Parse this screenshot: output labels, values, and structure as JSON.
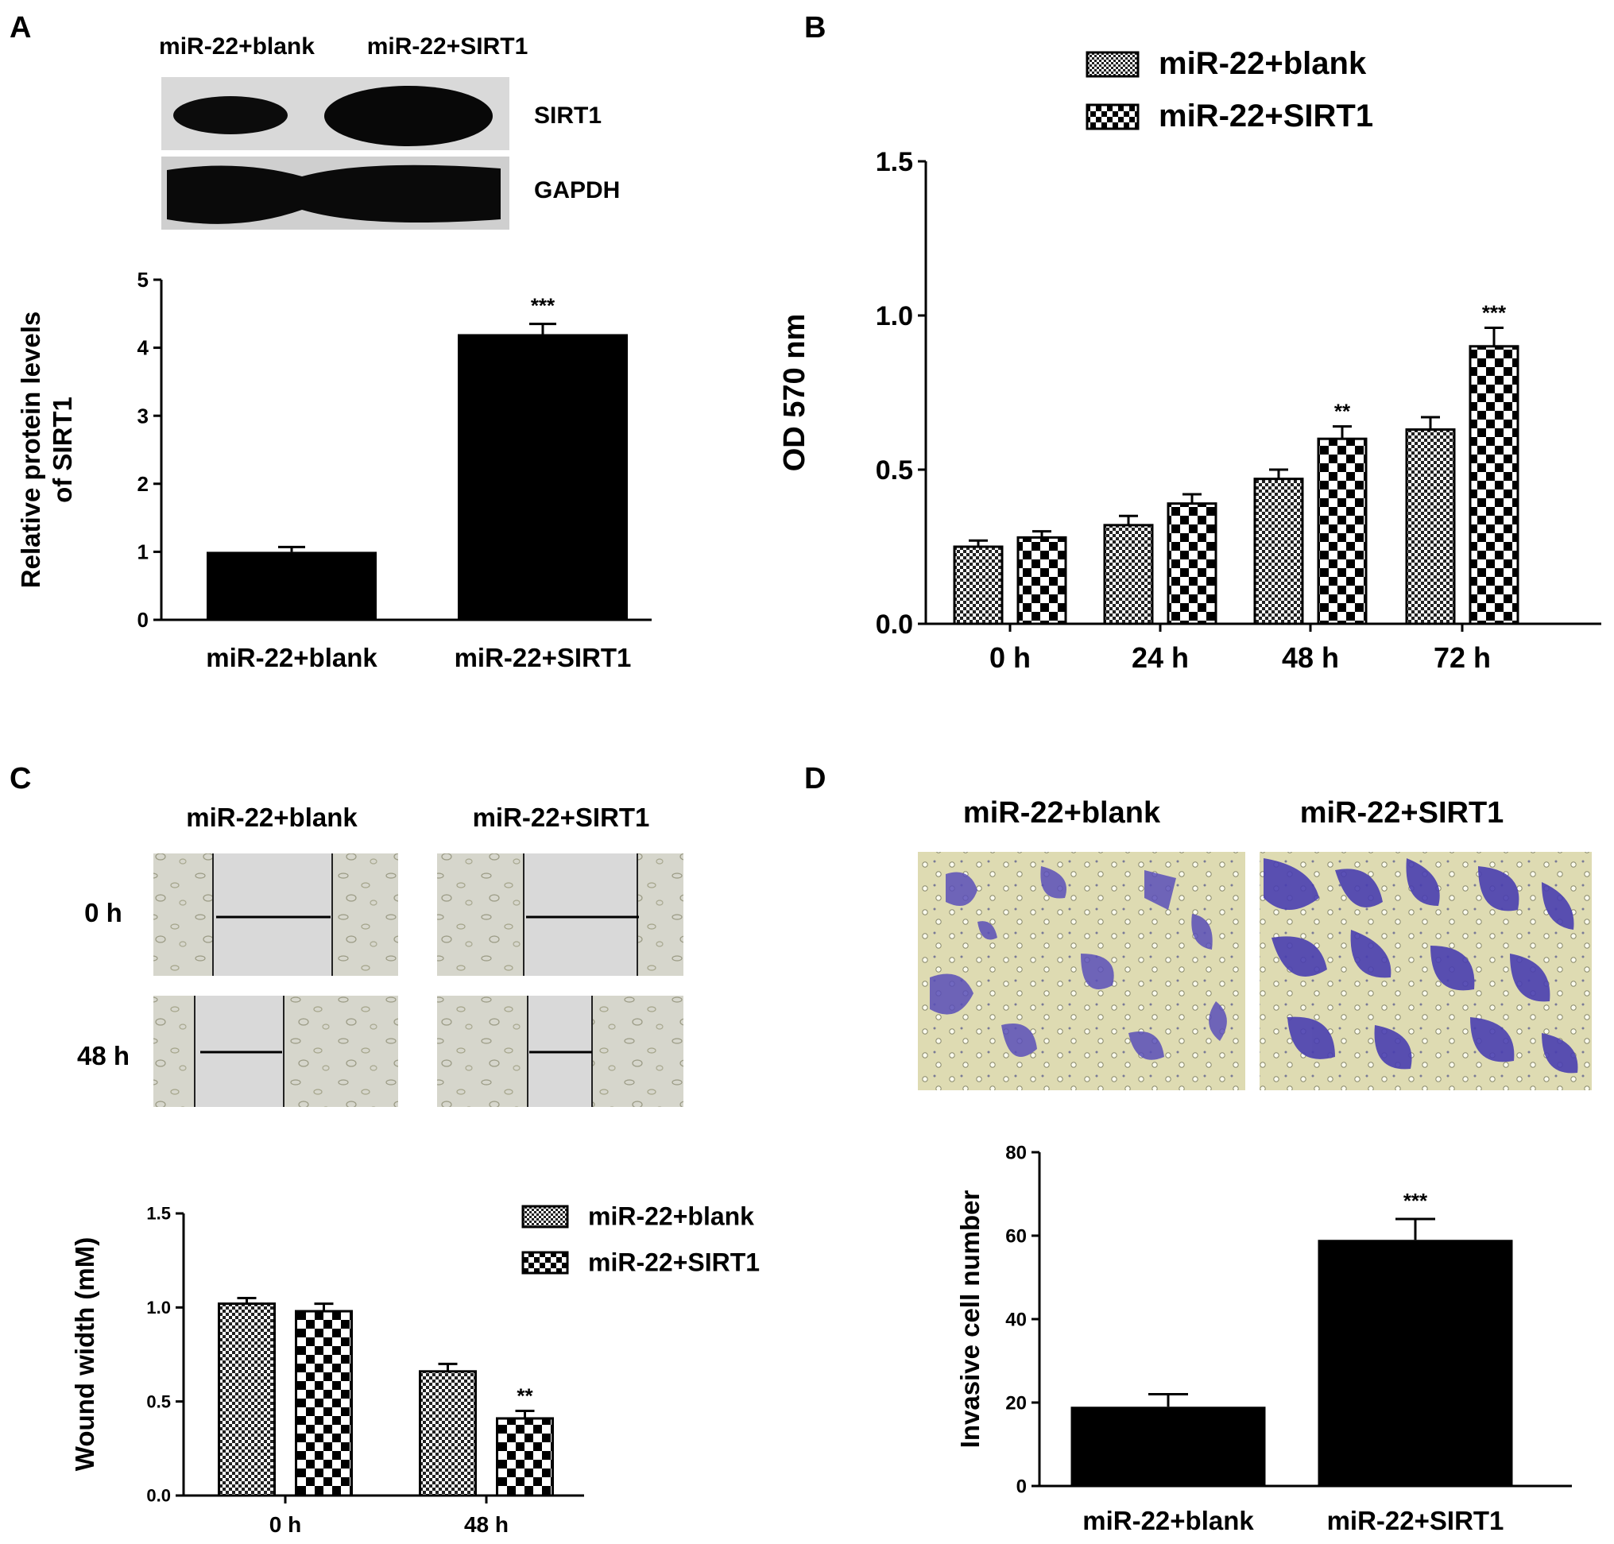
{
  "panels": {
    "A": {
      "letter": "A",
      "blot_top_labels": [
        "miR-22+blank",
        "miR-22+SIRT1"
      ],
      "blot_row_labels": [
        "SIRT1",
        "GAPDH"
      ]
    },
    "B": {
      "letter": "B"
    },
    "C": {
      "letter": "C",
      "image_col_labels": [
        "miR-22+blank",
        "miR-22+SIRT1"
      ],
      "image_row_labels": [
        "0 h",
        "48 h"
      ]
    },
    "D": {
      "letter": "D",
      "image_col_labels": [
        "miR-22+blank",
        "miR-22+SIRT1"
      ]
    }
  },
  "colors": {
    "bar_solid": "#000000",
    "pattern_fine": "#000000",
    "pattern_coarse": "#000000",
    "axis": "#000000"
  },
  "chart_data": [
    {
      "id": "A",
      "type": "bar",
      "categories": [
        "miR-22+blank",
        "miR-22+SIRT1"
      ],
      "values": [
        1.0,
        4.2
      ],
      "errors": [
        0.07,
        0.15
      ],
      "annotations": [
        "",
        "***"
      ],
      "xlabel": "",
      "ylabel": "Relative protein levels of SIRT1",
      "ylabel_lines": [
        "Relative protein levels",
        "of SIRT1"
      ],
      "ylim": [
        0,
        5
      ],
      "yticks": [
        0,
        1,
        2,
        3,
        4,
        5
      ],
      "ytick_labels": [
        "0",
        "1",
        "2",
        "3",
        "4",
        "5"
      ],
      "legend": "none",
      "grid": false
    },
    {
      "id": "B",
      "type": "bar",
      "categories": [
        "0 h",
        "24 h",
        "48 h",
        "72 h"
      ],
      "series": [
        {
          "name": "miR-22+blank",
          "pattern": "fine-checker",
          "values": [
            0.25,
            0.32,
            0.47,
            0.63
          ],
          "errors": [
            0.02,
            0.03,
            0.03,
            0.04
          ],
          "annotations": [
            "",
            "",
            "",
            ""
          ]
        },
        {
          "name": "miR-22+SIRT1",
          "pattern": "coarse-checker",
          "values": [
            0.28,
            0.39,
            0.6,
            0.9
          ],
          "errors": [
            0.02,
            0.03,
            0.04,
            0.06
          ],
          "annotations": [
            "",
            "",
            "**",
            "***"
          ]
        }
      ],
      "xlabel": "",
      "ylabel": "OD 570 nm",
      "ylim": [
        0,
        1.5
      ],
      "yticks": [
        0,
        0.5,
        1.0,
        1.5
      ],
      "ytick_labels": [
        "0.0",
        "0.5",
        "1.0",
        "1.5"
      ],
      "legend": "top",
      "grid": false
    },
    {
      "id": "C",
      "type": "bar",
      "categories": [
        "0 h",
        "48 h"
      ],
      "series": [
        {
          "name": "miR-22+blank",
          "pattern": "fine-checker",
          "values": [
            1.02,
            0.66
          ],
          "errors": [
            0.03,
            0.04
          ],
          "annotations": [
            "",
            ""
          ]
        },
        {
          "name": "miR-22+SIRT1",
          "pattern": "coarse-checker",
          "values": [
            0.98,
            0.41
          ],
          "errors": [
            0.04,
            0.04
          ],
          "annotations": [
            "",
            "**"
          ]
        }
      ],
      "xlabel": "",
      "ylabel": "Wound width (mM)",
      "ylim": [
        0,
        1.5
      ],
      "yticks": [
        0,
        0.5,
        1.0,
        1.5
      ],
      "ytick_labels": [
        "0.0",
        "0.5",
        "1.0",
        "1.5"
      ],
      "legend": "top-right",
      "grid": false
    },
    {
      "id": "D",
      "type": "bar",
      "categories": [
        "miR-22+blank",
        "miR-22+SIRT1"
      ],
      "values": [
        19,
        59
      ],
      "errors": [
        3,
        5
      ],
      "annotations": [
        "",
        "***"
      ],
      "xlabel": "",
      "ylabel": "Invasive cell number",
      "ylim": [
        0,
        80
      ],
      "yticks": [
        0,
        20,
        40,
        60,
        80
      ],
      "ytick_labels": [
        "0",
        "20",
        "40",
        "60",
        "80"
      ],
      "legend": "none",
      "grid": false
    }
  ]
}
